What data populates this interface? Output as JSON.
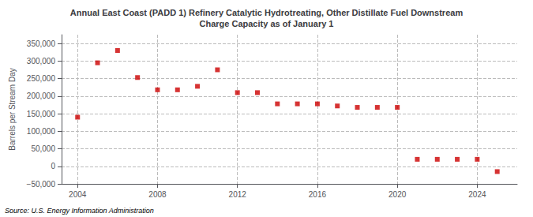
{
  "chart_data": {
    "type": "scatter",
    "title": "Annual East Coast (PADD 1) Refinery Catalytic Hydrotreating, Other Distillate Fuel Downstream\nCharge Capacity as of January 1",
    "ylabel": "Barrels per Stream Day",
    "annotation": "Source: U.S. Energy Information Administration",
    "x": [
      2004,
      2005,
      2006,
      2007,
      2008,
      2009,
      2010,
      2011,
      2012,
      2013,
      2014,
      2015,
      2016,
      2017,
      2018,
      2019,
      2020,
      2021,
      2022,
      2023,
      2024,
      2025
    ],
    "values": [
      140000,
      295000,
      330000,
      253000,
      218000,
      218000,
      228000,
      275000,
      210000,
      210000,
      178000,
      178000,
      178000,
      172000,
      168000,
      168000,
      168000,
      20000,
      20000,
      20000,
      20000,
      -15000
    ],
    "color": "#cc0000",
    "marker": "square",
    "xlim": [
      2003.2,
      2026
    ],
    "xticks": [
      2004,
      2008,
      2012,
      2016,
      2020,
      2024
    ],
    "ylim": [
      -50000,
      375000
    ],
    "yticks": [
      {
        "value": -50000,
        "label": "−50,000"
      },
      0,
      {
        "value": 50000,
        "label": "50,000"
      },
      {
        "value": 100000,
        "label": "100,000"
      },
      {
        "value": 150000,
        "label": "150,000"
      },
      {
        "value": 200000,
        "label": "200,000"
      },
      {
        "value": 250000,
        "label": "250,000"
      },
      {
        "value": 300000,
        "label": "300,000"
      },
      {
        "value": 350000,
        "label": "350,000"
      }
    ],
    "grid": true
  }
}
